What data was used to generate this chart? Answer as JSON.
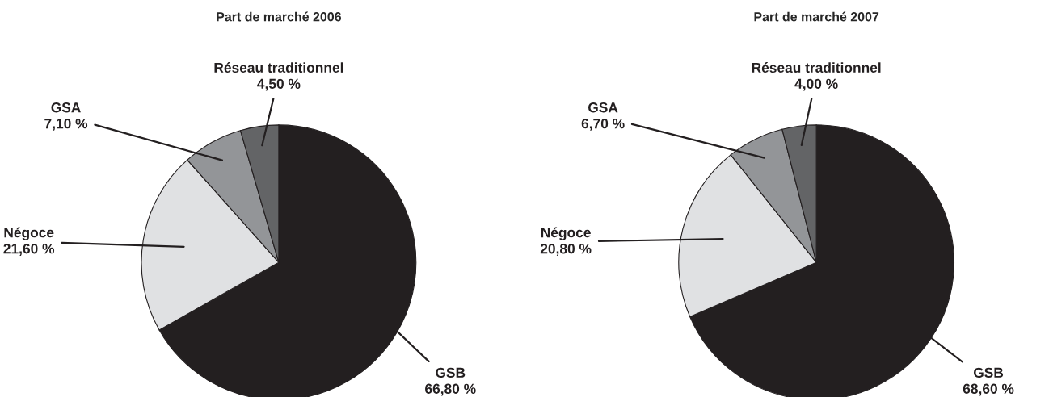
{
  "chart_data": [
    {
      "type": "pie",
      "title": "Part de marché 2006",
      "categories": [
        "GSB",
        "Négoce",
        "GSA",
        "Réseau traditionnel"
      ],
      "values": [
        66.8,
        21.6,
        7.1,
        4.5
      ],
      "colors": [
        "#231f20",
        "#e0e1e3",
        "#939598",
        "#636466"
      ],
      "value_labels": [
        "66,80 %",
        "21,60 %",
        "7,10 %",
        "4,50 %"
      ]
    },
    {
      "type": "pie",
      "title": "Part de marché 2007",
      "categories": [
        "GSB",
        "Négoce",
        "GSA",
        "Réseau traditionnel"
      ],
      "values": [
        68.6,
        20.8,
        6.7,
        4.0
      ],
      "colors": [
        "#231f20",
        "#e0e1e3",
        "#939598",
        "#636466"
      ],
      "value_labels": [
        "68,60 %",
        "20,80 %",
        "6,70 %",
        "4,00 %"
      ]
    }
  ]
}
